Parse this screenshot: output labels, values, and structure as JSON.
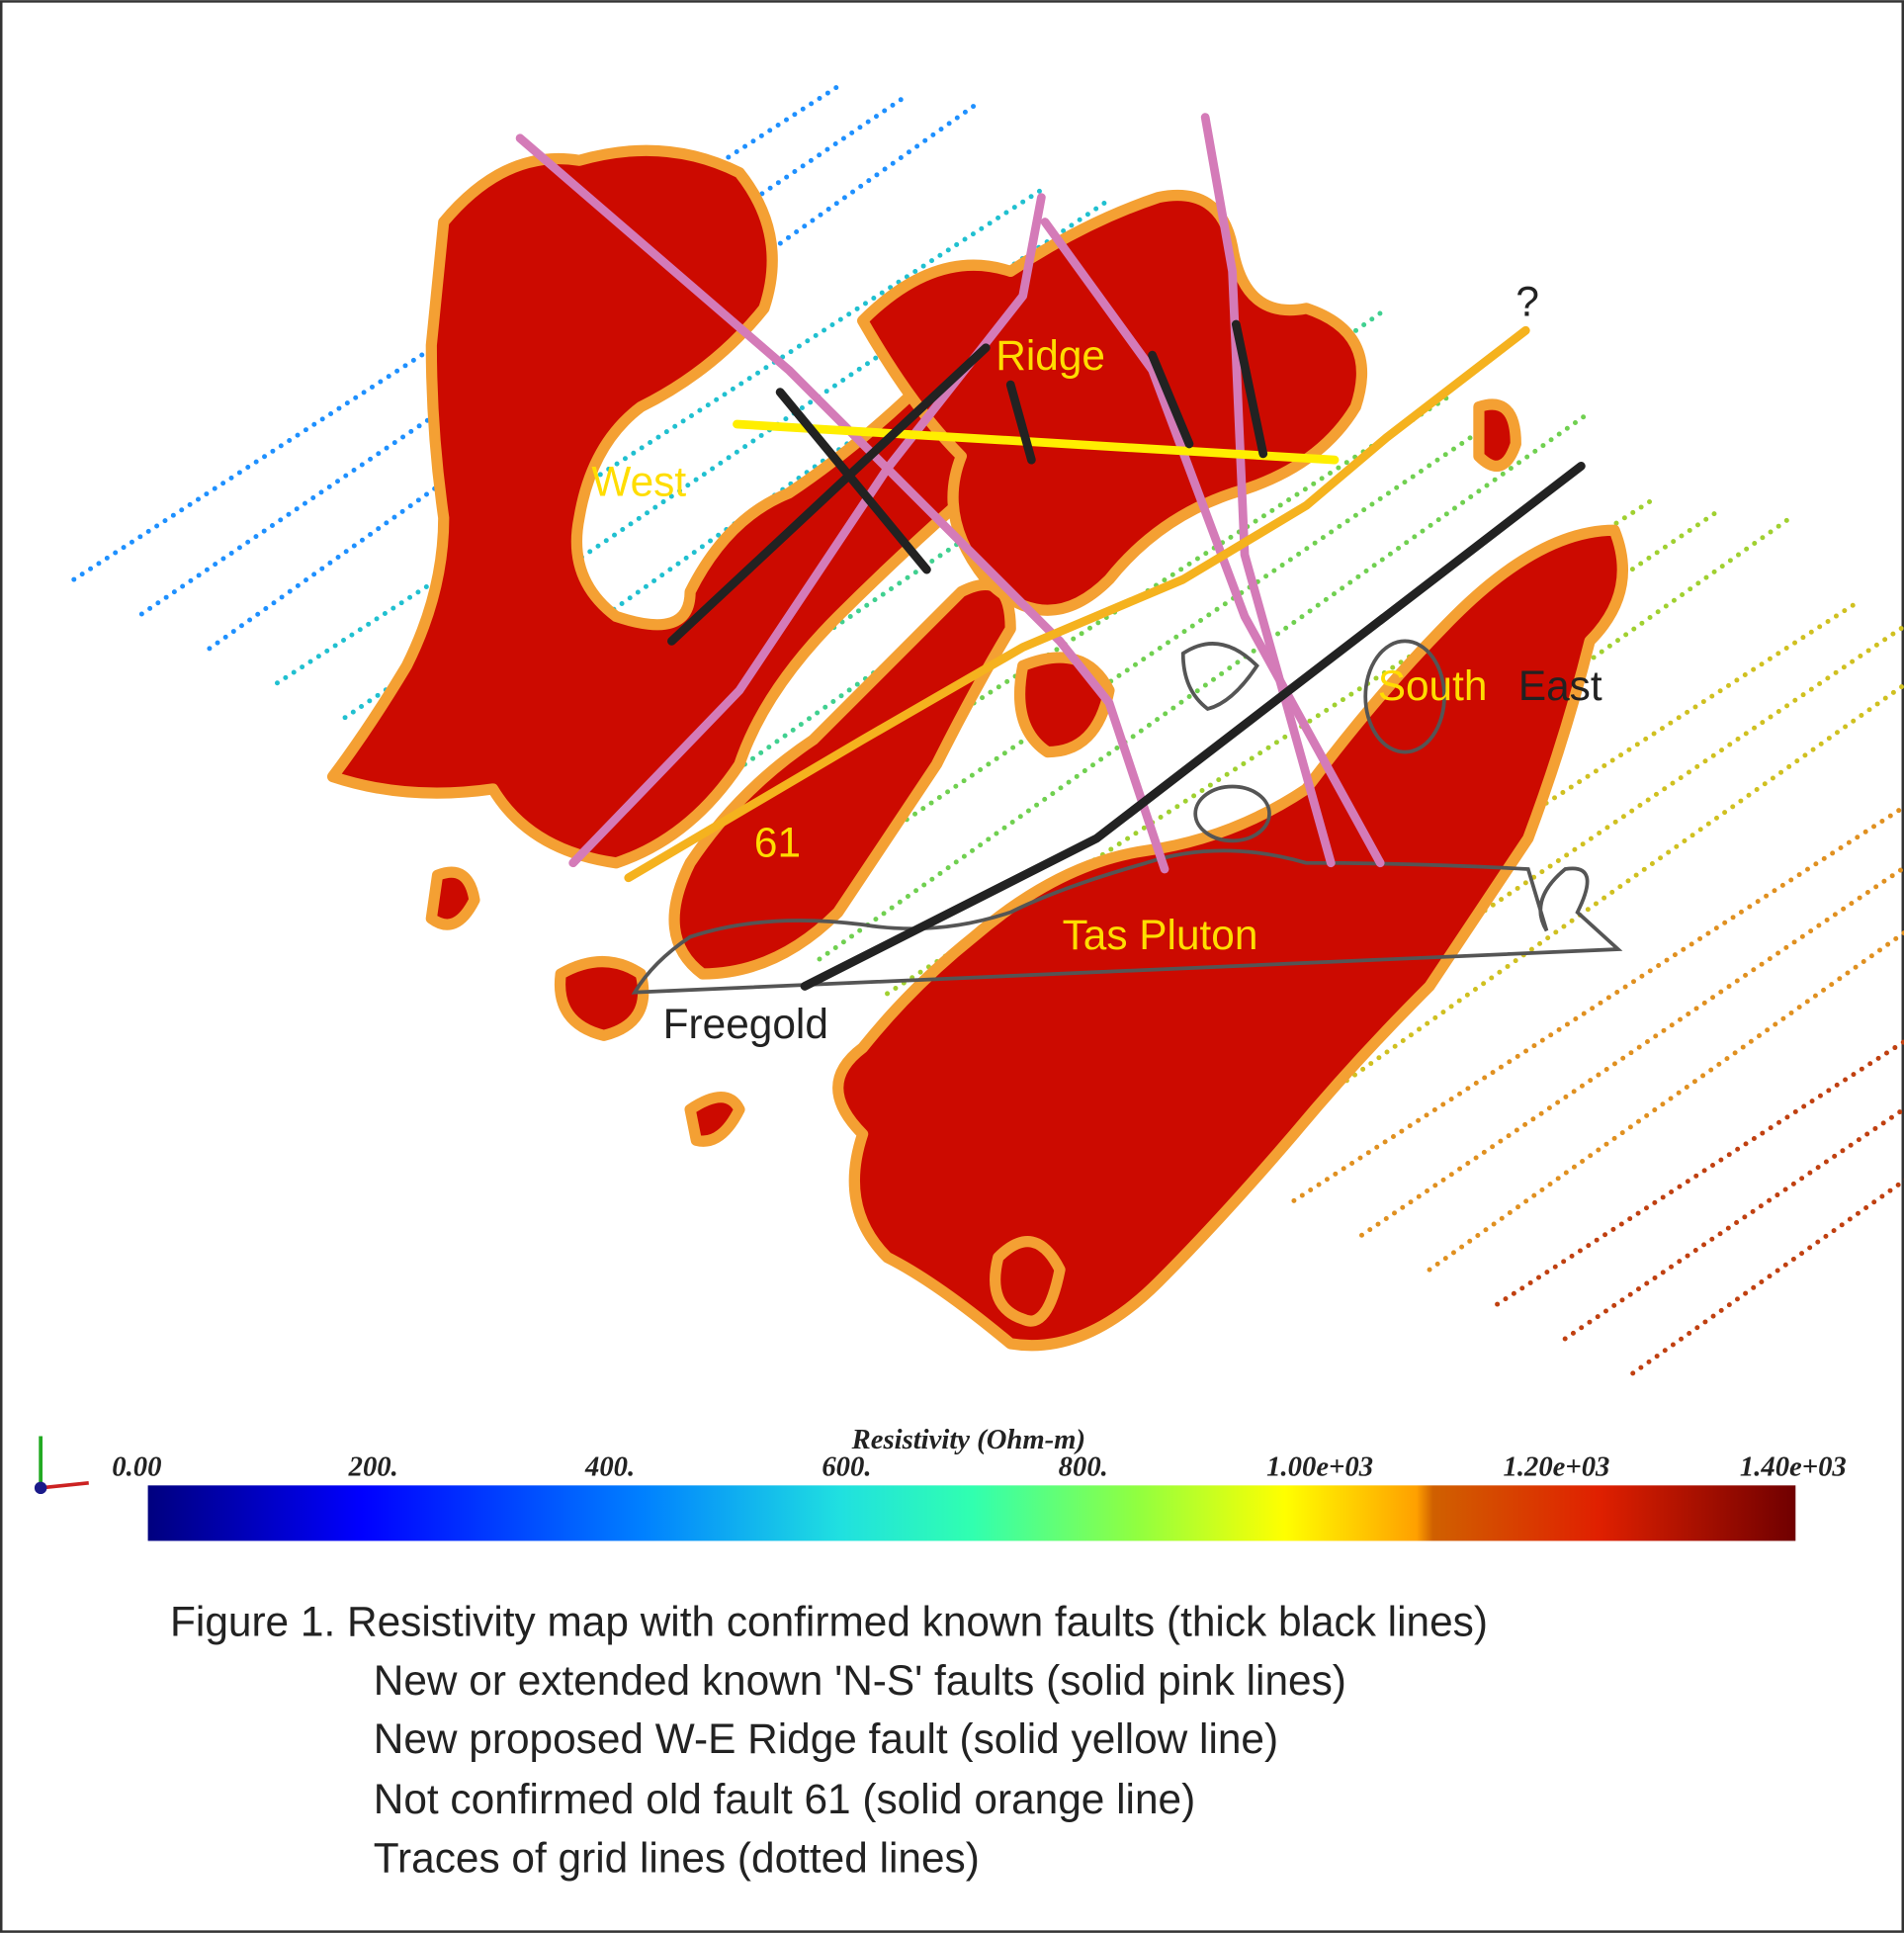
{
  "map": {
    "labels": {
      "ridge": "Ridge",
      "west": "West",
      "fault_61": "61",
      "tas_pluton": "Tas Pluton",
      "freegold": "Freegold",
      "south": "South",
      "east": "East",
      "question": "?"
    },
    "colorbar": {
      "title": "Resistivity (Ohm-m)",
      "ticks": [
        {
          "value": 0,
          "label": "0.00"
        },
        {
          "value": 200,
          "label": "200."
        },
        {
          "value": 400,
          "label": "400."
        },
        {
          "value": 600,
          "label": "600."
        },
        {
          "value": 800,
          "label": "800."
        },
        {
          "value": 1000,
          "label": "1.00e+03"
        },
        {
          "value": 1200,
          "label": "1.20e+03"
        },
        {
          "value": 1400,
          "label": "1.40e+03"
        }
      ]
    }
  },
  "caption": [
    "Figure 1. Resistivity map with confirmed known faults (thick black lines)",
    "New or extended known 'N-S' faults (solid pink lines)",
    "New proposed W-E Ridge fault (solid yellow line)",
    "Not confirmed old fault 61 (solid orange line)",
    "Traces of grid lines (dotted lines)"
  ]
}
